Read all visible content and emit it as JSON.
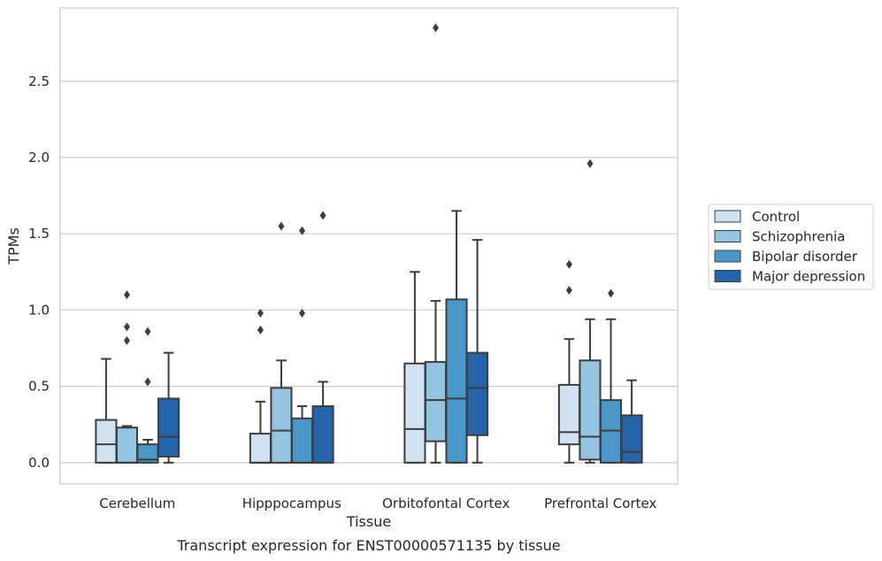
{
  "chart_data": {
    "type": "box",
    "title": "",
    "caption": "Transcript expression for ENST00000571135 by tissue",
    "xlabel": "Tissue",
    "ylabel": "TPMs",
    "ylim": [
      -0.14,
      2.98
    ],
    "yticks": [
      "0.0",
      "0.5",
      "1.0",
      "1.5",
      "2.0",
      "2.5"
    ],
    "grid": "horizontal",
    "legend_position": "right",
    "categories": [
      "Cerebellum",
      "Hipppocampus",
      "Orbitofontal Cortex",
      "Prefrontal Cortex"
    ],
    "series": [
      {
        "name": "Control",
        "color": "#d0e1f2",
        "boxes": [
          {
            "q1": 0.0,
            "median": 0.12,
            "q3": 0.28,
            "whisker_low": 0.0,
            "whisker_high": 0.68,
            "outliers": []
          },
          {
            "q1": 0.0,
            "median": 0.0,
            "q3": 0.19,
            "whisker_low": 0.0,
            "whisker_high": 0.4,
            "outliers": [
              0.98,
              0.87
            ]
          },
          {
            "q1": 0.0,
            "median": 0.22,
            "q3": 0.65,
            "whisker_low": 0.0,
            "whisker_high": 1.25,
            "outliers": []
          },
          {
            "q1": 0.12,
            "median": 0.2,
            "q3": 0.51,
            "whisker_low": 0.0,
            "whisker_high": 0.81,
            "outliers": [
              1.3,
              1.13
            ]
          }
        ]
      },
      {
        "name": "Schizophrenia",
        "color": "#94c4df",
        "boxes": [
          {
            "q1": 0.0,
            "median": 0.0,
            "q3": 0.23,
            "whisker_low": 0.0,
            "whisker_high": 0.24,
            "outliers": [
              1.1,
              0.89,
              0.8
            ]
          },
          {
            "q1": 0.0,
            "median": 0.21,
            "q3": 0.49,
            "whisker_low": 0.0,
            "whisker_high": 0.67,
            "outliers": [
              1.55
            ]
          },
          {
            "q1": 0.14,
            "median": 0.41,
            "q3": 0.66,
            "whisker_low": 0.0,
            "whisker_high": 1.06,
            "outliers": [
              2.85
            ]
          },
          {
            "q1": 0.02,
            "median": 0.17,
            "q3": 0.67,
            "whisker_low": 0.0,
            "whisker_high": 0.94,
            "outliers": [
              1.96
            ]
          }
        ]
      },
      {
        "name": "Bipolar disorder",
        "color": "#4a98c9",
        "boxes": [
          {
            "q1": 0.0,
            "median": 0.02,
            "q3": 0.12,
            "whisker_low": 0.0,
            "whisker_high": 0.15,
            "outliers": [
              0.86,
              0.53
            ]
          },
          {
            "q1": 0.0,
            "median": 0.0,
            "q3": 0.29,
            "whisker_low": 0.0,
            "whisker_high": 0.37,
            "outliers": [
              1.52,
              0.98
            ]
          },
          {
            "q1": 0.0,
            "median": 0.42,
            "q3": 1.07,
            "whisker_low": 0.0,
            "whisker_high": 1.65,
            "outliers": []
          },
          {
            "q1": 0.0,
            "median": 0.21,
            "q3": 0.41,
            "whisker_low": 0.0,
            "whisker_high": 0.94,
            "outliers": [
              1.11
            ]
          }
        ]
      },
      {
        "name": "Major depression",
        "color": "#2364aa",
        "boxes": [
          {
            "q1": 0.04,
            "median": 0.17,
            "q3": 0.42,
            "whisker_low": 0.0,
            "whisker_high": 0.72,
            "outliers": []
          },
          {
            "q1": 0.0,
            "median": 0.0,
            "q3": 0.37,
            "whisker_low": 0.0,
            "whisker_high": 0.53,
            "outliers": [
              1.62
            ]
          },
          {
            "q1": 0.18,
            "median": 0.49,
            "q3": 0.72,
            "whisker_low": 0.0,
            "whisker_high": 1.46,
            "outliers": []
          },
          {
            "q1": 0.0,
            "median": 0.07,
            "q3": 0.31,
            "whisker_low": 0.0,
            "whisker_high": 0.54,
            "outliers": []
          }
        ]
      }
    ],
    "colors": {
      "axes_edge": "#cccccc",
      "grid": "#cccccc",
      "box_line": "#3d3d3d",
      "text": "#262626"
    }
  }
}
